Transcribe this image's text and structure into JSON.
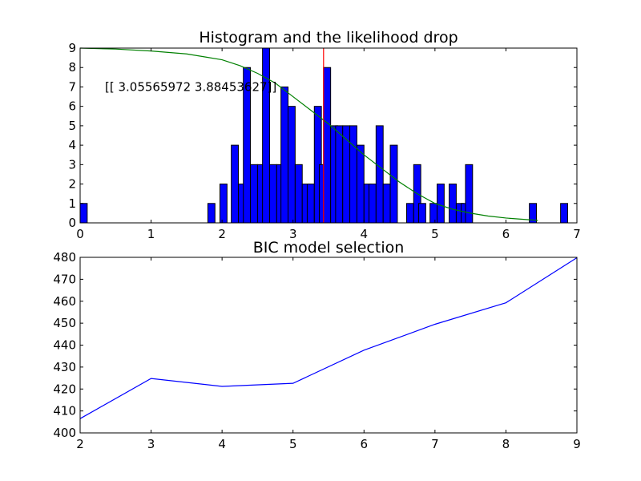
{
  "chart_data": [
    {
      "type": "bar",
      "title": "Histogram and the likelihood drop",
      "xlabel": "",
      "ylabel": "",
      "xlim": [
        0,
        7
      ],
      "ylim": [
        0,
        9
      ],
      "xticks": [
        "0",
        "1",
        "2",
        "3",
        "4",
        "5",
        "6",
        "7"
      ],
      "yticks": [
        "0",
        "1",
        "2",
        "3",
        "4",
        "5",
        "6",
        "7",
        "8",
        "9"
      ],
      "bin_width": 0.1,
      "bar_color": "#0000ff",
      "bins": [
        {
          "x": 0.0,
          "count": 1
        },
        {
          "x": 1.8,
          "count": 1
        },
        {
          "x": 1.97,
          "count": 2
        },
        {
          "x": 2.13,
          "count": 4
        },
        {
          "x": 2.23,
          "count": 2
        },
        {
          "x": 2.3,
          "count": 8
        },
        {
          "x": 2.4,
          "count": 3
        },
        {
          "x": 2.5,
          "count": 3
        },
        {
          "x": 2.57,
          "count": 9
        },
        {
          "x": 2.67,
          "count": 3
        },
        {
          "x": 2.77,
          "count": 3
        },
        {
          "x": 2.83,
          "count": 7
        },
        {
          "x": 2.93,
          "count": 6
        },
        {
          "x": 3.03,
          "count": 3
        },
        {
          "x": 3.13,
          "count": 2
        },
        {
          "x": 3.2,
          "count": 2
        },
        {
          "x": 3.3,
          "count": 6
        },
        {
          "x": 3.37,
          "count": 3
        },
        {
          "x": 3.43,
          "count": 8
        },
        {
          "x": 3.53,
          "count": 5
        },
        {
          "x": 3.6,
          "count": 5
        },
        {
          "x": 3.7,
          "count": 5
        },
        {
          "x": 3.8,
          "count": 5
        },
        {
          "x": 3.9,
          "count": 4
        },
        {
          "x": 4.0,
          "count": 2
        },
        {
          "x": 4.07,
          "count": 2
        },
        {
          "x": 4.17,
          "count": 5
        },
        {
          "x": 4.27,
          "count": 2
        },
        {
          "x": 4.37,
          "count": 4
        },
        {
          "x": 4.6,
          "count": 1
        },
        {
          "x": 4.7,
          "count": 3
        },
        {
          "x": 4.77,
          "count": 1
        },
        {
          "x": 4.93,
          "count": 1
        },
        {
          "x": 5.03,
          "count": 2
        },
        {
          "x": 5.2,
          "count": 2
        },
        {
          "x": 5.3,
          "count": 1
        },
        {
          "x": 5.37,
          "count": 1
        },
        {
          "x": 5.43,
          "count": 3
        },
        {
          "x": 6.33,
          "count": 1
        },
        {
          "x": 6.77,
          "count": 1
        }
      ],
      "curve_color": "#008000",
      "likelihood_curve": [
        {
          "x": 0.0,
          "y": 9.0
        },
        {
          "x": 0.5,
          "y": 8.95
        },
        {
          "x": 1.0,
          "y": 8.85
        },
        {
          "x": 1.5,
          "y": 8.7
        },
        {
          "x": 1.75,
          "y": 8.55
        },
        {
          "x": 2.0,
          "y": 8.4
        },
        {
          "x": 2.25,
          "y": 8.1
        },
        {
          "x": 2.5,
          "y": 7.7
        },
        {
          "x": 2.75,
          "y": 7.2
        },
        {
          "x": 3.0,
          "y": 6.5
        },
        {
          "x": 3.25,
          "y": 5.8
        },
        {
          "x": 3.5,
          "y": 5.1
        },
        {
          "x": 3.75,
          "y": 4.3
        },
        {
          "x": 4.0,
          "y": 3.5
        },
        {
          "x": 4.25,
          "y": 2.8
        },
        {
          "x": 4.5,
          "y": 2.1
        },
        {
          "x": 4.75,
          "y": 1.5
        },
        {
          "x": 5.0,
          "y": 1.0
        },
        {
          "x": 5.25,
          "y": 0.7
        },
        {
          "x": 5.5,
          "y": 0.5
        },
        {
          "x": 5.75,
          "y": 0.35
        },
        {
          "x": 6.0,
          "y": 0.25
        },
        {
          "x": 6.25,
          "y": 0.18
        },
        {
          "x": 6.45,
          "y": 0.13
        }
      ],
      "vline": {
        "x": 3.43,
        "color": "#ff0000"
      },
      "annotation": {
        "text": "[[ 3.05565972  3.88453627]]",
        "x": 0.35,
        "y": 7.0
      }
    },
    {
      "type": "line",
      "title": "BIC model selection",
      "xlabel": "",
      "ylabel": "",
      "xlim": [
        2,
        9
      ],
      "ylim": [
        400,
        480
      ],
      "xticks": [
        "2",
        "3",
        "4",
        "5",
        "6",
        "7",
        "8",
        "9"
      ],
      "yticks": [
        "400",
        "410",
        "420",
        "430",
        "440",
        "450",
        "460",
        "470",
        "480"
      ],
      "line_color": "#0000ff",
      "x": [
        2,
        3,
        4,
        5,
        6,
        7,
        8,
        9
      ],
      "y": [
        406.5,
        424.8,
        421.2,
        422.6,
        437.7,
        449.5,
        459.3,
        479.8
      ]
    }
  ]
}
